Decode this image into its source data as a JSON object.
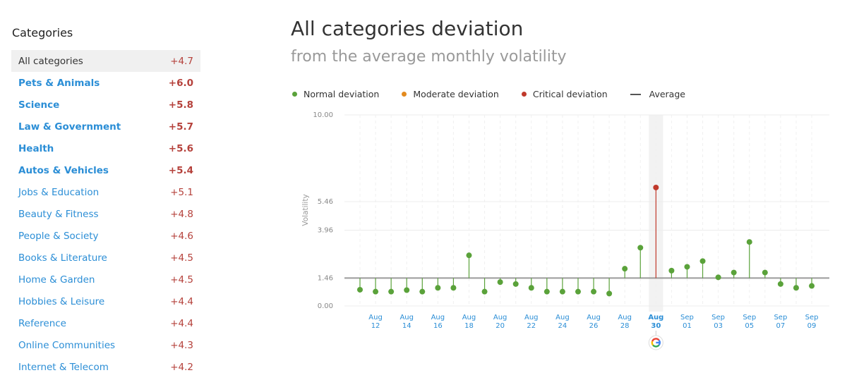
{
  "sidebar": {
    "title": "Categories",
    "items": [
      {
        "label": "All categories",
        "value": "+4.7",
        "selected": true,
        "bold": false
      },
      {
        "label": "Pets & Animals",
        "value": "+6.0",
        "selected": false,
        "bold": true
      },
      {
        "label": "Science",
        "value": "+5.8",
        "selected": false,
        "bold": true
      },
      {
        "label": "Law & Government",
        "value": "+5.7",
        "selected": false,
        "bold": true
      },
      {
        "label": "Health",
        "value": "+5.6",
        "selected": false,
        "bold": true
      },
      {
        "label": "Autos & Vehicles",
        "value": "+5.4",
        "selected": false,
        "bold": true
      },
      {
        "label": "Jobs & Education",
        "value": "+5.1",
        "selected": false,
        "bold": false
      },
      {
        "label": "Beauty & Fitness",
        "value": "+4.8",
        "selected": false,
        "bold": false
      },
      {
        "label": "People & Society",
        "value": "+4.6",
        "selected": false,
        "bold": false
      },
      {
        "label": "Books & Literature",
        "value": "+4.5",
        "selected": false,
        "bold": false
      },
      {
        "label": "Home & Garden",
        "value": "+4.5",
        "selected": false,
        "bold": false
      },
      {
        "label": "Hobbies & Leisure",
        "value": "+4.4",
        "selected": false,
        "bold": false
      },
      {
        "label": "Reference",
        "value": "+4.4",
        "selected": false,
        "bold": false
      },
      {
        "label": "Online Communities",
        "value": "+4.3",
        "selected": false,
        "bold": false
      },
      {
        "label": "Internet & Telecom",
        "value": "+4.2",
        "selected": false,
        "bold": false
      }
    ]
  },
  "header": {
    "title": "All categories deviation",
    "subtitle": "from the average monthly volatility"
  },
  "legend": {
    "normal": "Normal deviation",
    "moderate": "Moderate deviation",
    "critical": "Critical deviation",
    "average": "Average"
  },
  "colors": {
    "normal": "#5aa23a",
    "moderate": "#e38a1e",
    "critical": "#c0392b",
    "average": "#9a9a9a",
    "link": "#2b8ed6",
    "highlight": "#f2f2f2"
  },
  "chart_data": {
    "type": "scatter",
    "ylabel": "Volatility",
    "yticks": [
      "10.00",
      "5.46",
      "3.96",
      "1.46",
      "0.00"
    ],
    "ytick_values": [
      10.0,
      5.46,
      3.96,
      1.46,
      0.0
    ],
    "ylim": [
      0,
      10
    ],
    "average": 1.46,
    "grid": true,
    "legend_position": "top-left",
    "highlight_date": "2023-08-30",
    "google_update_icon": "google-g-icon",
    "x_tick_labels": [
      {
        "month": "Aug",
        "day": "12"
      },
      {
        "month": "Aug",
        "day": "14"
      },
      {
        "month": "Aug",
        "day": "16"
      },
      {
        "month": "Aug",
        "day": "18"
      },
      {
        "month": "Aug",
        "day": "20"
      },
      {
        "month": "Aug",
        "day": "22"
      },
      {
        "month": "Aug",
        "day": "24"
      },
      {
        "month": "Aug",
        "day": "26"
      },
      {
        "month": "Aug",
        "day": "28"
      },
      {
        "month": "Aug",
        "day": "30"
      },
      {
        "month": "Sep",
        "day": "01"
      },
      {
        "month": "Sep",
        "day": "03"
      },
      {
        "month": "Sep",
        "day": "05"
      },
      {
        "month": "Sep",
        "day": "07"
      },
      {
        "month": "Sep",
        "day": "09"
      }
    ],
    "points": [
      {
        "date": "2023-08-11",
        "value": 0.85,
        "level": "normal"
      },
      {
        "date": "2023-08-12",
        "value": 0.75,
        "level": "normal"
      },
      {
        "date": "2023-08-13",
        "value": 0.75,
        "level": "normal"
      },
      {
        "date": "2023-08-14",
        "value": 0.83,
        "level": "normal"
      },
      {
        "date": "2023-08-15",
        "value": 0.75,
        "level": "normal"
      },
      {
        "date": "2023-08-16",
        "value": 0.95,
        "level": "normal"
      },
      {
        "date": "2023-08-17",
        "value": 0.95,
        "level": "normal"
      },
      {
        "date": "2023-08-18",
        "value": 2.65,
        "level": "normal"
      },
      {
        "date": "2023-08-19",
        "value": 0.75,
        "level": "normal"
      },
      {
        "date": "2023-08-20",
        "value": 1.25,
        "level": "normal"
      },
      {
        "date": "2023-08-21",
        "value": 1.15,
        "level": "normal"
      },
      {
        "date": "2023-08-22",
        "value": 0.95,
        "level": "normal"
      },
      {
        "date": "2023-08-23",
        "value": 0.75,
        "level": "normal"
      },
      {
        "date": "2023-08-24",
        "value": 0.75,
        "level": "normal"
      },
      {
        "date": "2023-08-25",
        "value": 0.75,
        "level": "normal"
      },
      {
        "date": "2023-08-26",
        "value": 0.75,
        "level": "normal"
      },
      {
        "date": "2023-08-27",
        "value": 0.65,
        "level": "normal"
      },
      {
        "date": "2023-08-28",
        "value": 1.95,
        "level": "normal"
      },
      {
        "date": "2023-08-29",
        "value": 3.05,
        "level": "normal"
      },
      {
        "date": "2023-08-30",
        "value": 6.2,
        "level": "critical"
      },
      {
        "date": "2023-08-31",
        "value": 1.85,
        "level": "normal"
      },
      {
        "date": "2023-09-01",
        "value": 2.05,
        "level": "normal"
      },
      {
        "date": "2023-09-02",
        "value": 2.35,
        "level": "normal"
      },
      {
        "date": "2023-09-03",
        "value": 1.5,
        "level": "normal"
      },
      {
        "date": "2023-09-04",
        "value": 1.75,
        "level": "normal"
      },
      {
        "date": "2023-09-05",
        "value": 3.35,
        "level": "normal"
      },
      {
        "date": "2023-09-06",
        "value": 1.75,
        "level": "normal"
      },
      {
        "date": "2023-09-07",
        "value": 1.15,
        "level": "normal"
      },
      {
        "date": "2023-09-08",
        "value": 0.95,
        "level": "normal"
      },
      {
        "date": "2023-09-09",
        "value": 1.05,
        "level": "normal"
      }
    ]
  }
}
